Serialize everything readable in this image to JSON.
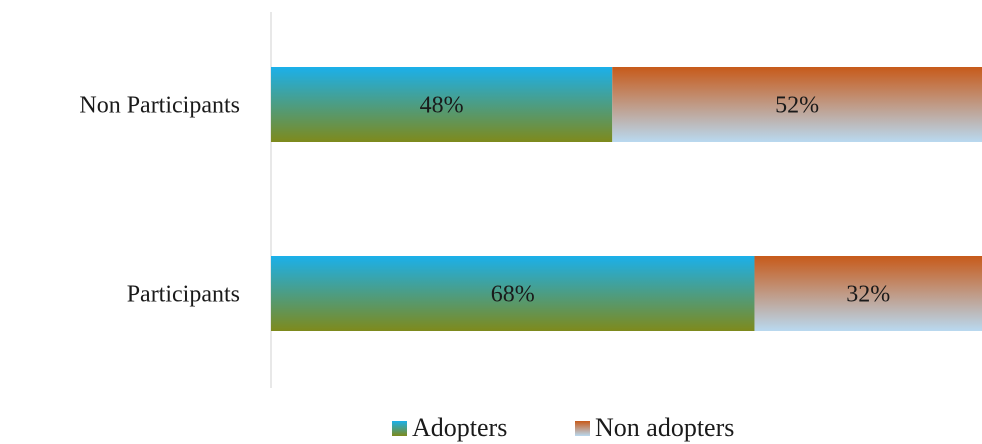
{
  "chart_data": {
    "type": "bar",
    "orientation": "horizontal",
    "stacked": true,
    "percent": true,
    "categories": [
      "Non Participants",
      "Participants"
    ],
    "series": [
      {
        "name": "Adopters",
        "values": [
          48,
          68
        ],
        "labels": [
          "48%",
          "68%"
        ]
      },
      {
        "name": "Non adopters",
        "values": [
          52,
          32
        ],
        "labels": [
          "52%",
          "32%"
        ]
      }
    ],
    "xlim": [
      0,
      100
    ],
    "grid": false,
    "legend": "bottom",
    "colors": {
      "Adopters": {
        "top": "#1bb0ea",
        "bottom": "#7e8a1c"
      },
      "Non adopters": {
        "top": "#c75a1a",
        "bottom": "#b9d9f0"
      }
    }
  }
}
